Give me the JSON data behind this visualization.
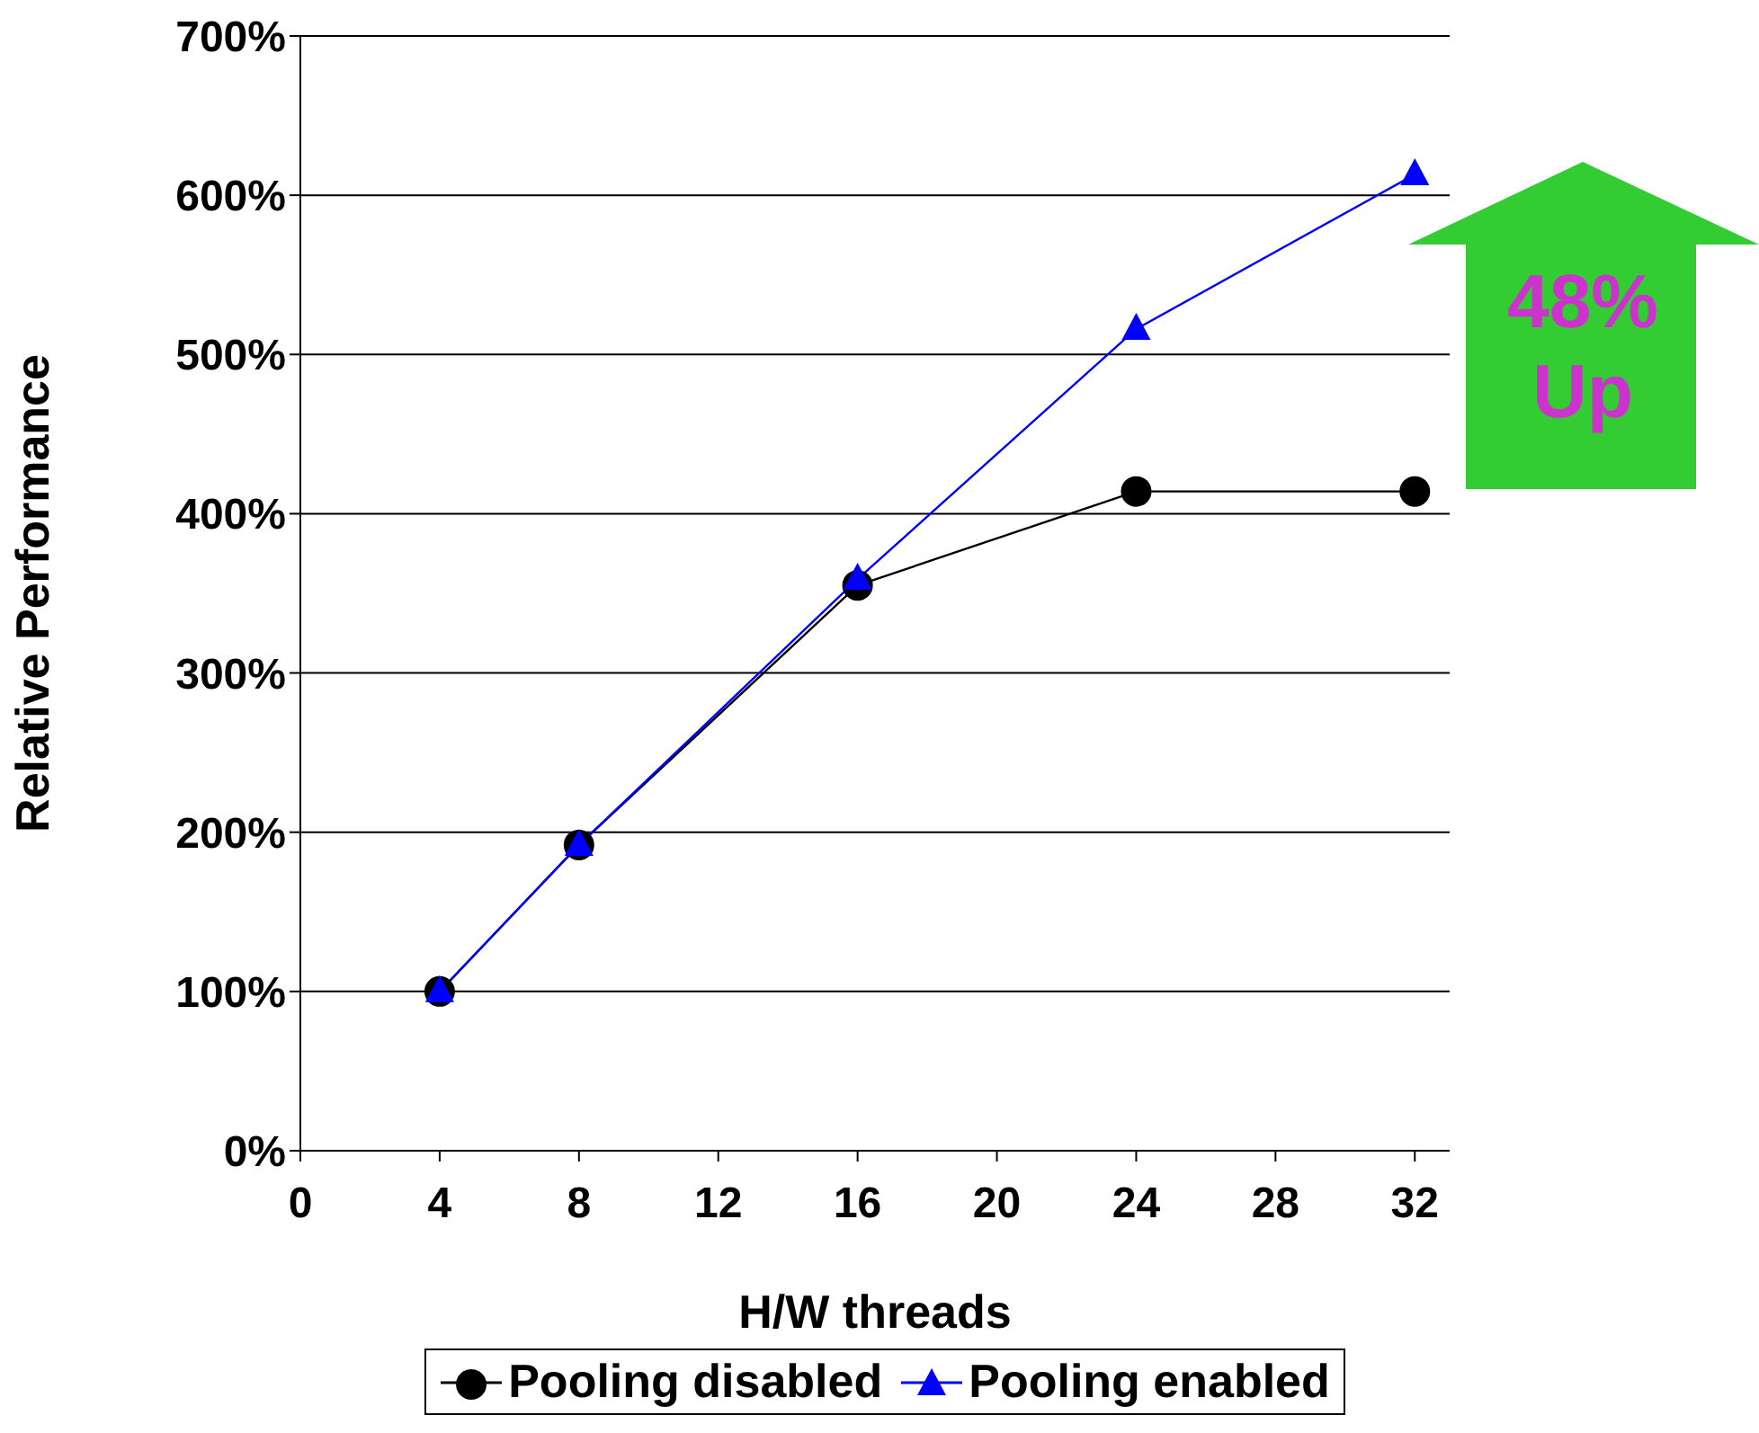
{
  "chart_data": {
    "type": "line",
    "xlabel": "H/W threads",
    "ylabel": "Relative Performance",
    "x": [
      4,
      8,
      16,
      24,
      32
    ],
    "series": [
      {
        "name": "Pooling disabled",
        "color": "#000000",
        "marker": "circle",
        "values": [
          100,
          192,
          355,
          414,
          414
        ]
      },
      {
        "name": "Pooling enabled",
        "color": "#0000ff",
        "marker": "triangle",
        "values": [
          100,
          192,
          359,
          516,
          613
        ]
      }
    ],
    "xlim": [
      0,
      33
    ],
    "xticks": [
      0,
      4,
      8,
      12,
      16,
      20,
      24,
      28,
      32
    ],
    "ylim": [
      0,
      700
    ],
    "yticks": [
      {
        "value": 0,
        "label": "0%"
      },
      {
        "value": 100,
        "label": "100%"
      },
      {
        "value": 200,
        "label": "200%"
      },
      {
        "value": 300,
        "label": "300%"
      },
      {
        "value": 400,
        "label": "400%"
      },
      {
        "value": 500,
        "label": "500%"
      },
      {
        "value": 600,
        "label": "600%"
      },
      {
        "value": 700,
        "label": "700%"
      }
    ],
    "grid": "y",
    "legend": "bottom",
    "line_style": "solid",
    "annotations": [
      "48% Up"
    ]
  }
}
